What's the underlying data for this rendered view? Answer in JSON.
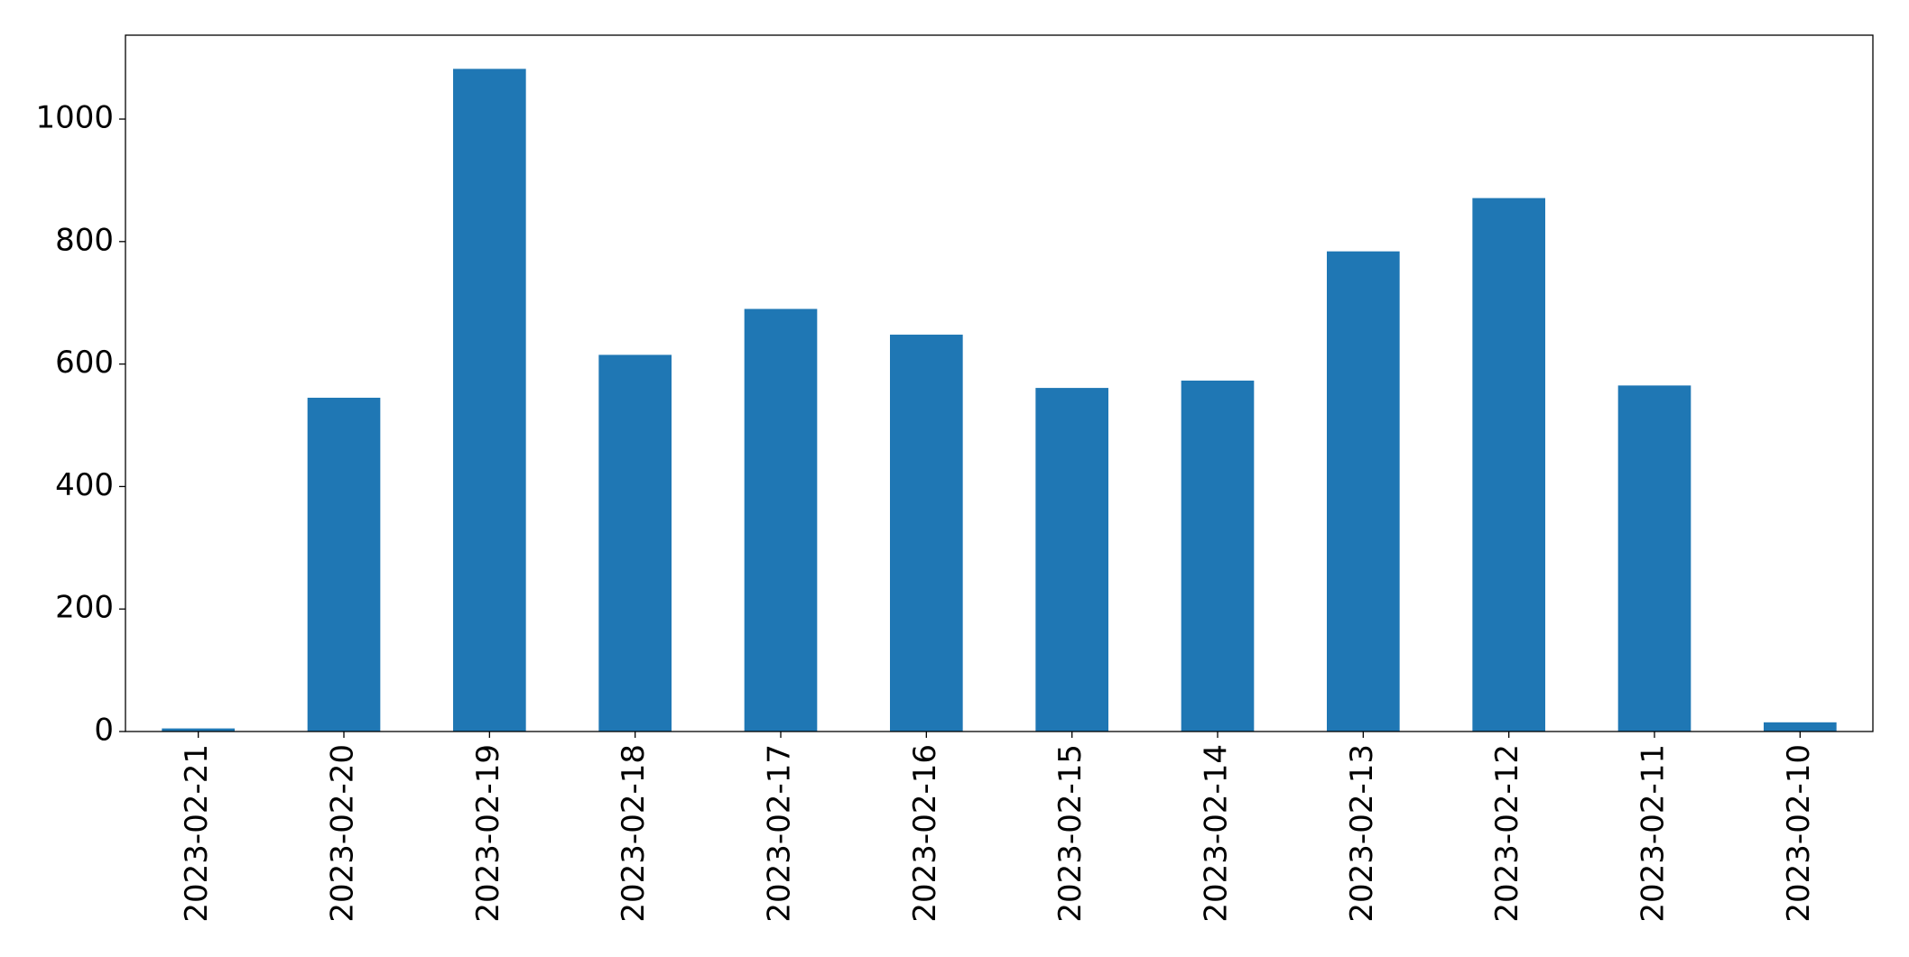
{
  "chart_data": {
    "type": "bar",
    "categories": [
      "2023-02-21",
      "2023-02-20",
      "2023-02-19",
      "2023-02-18",
      "2023-02-17",
      "2023-02-16",
      "2023-02-15",
      "2023-02-14",
      "2023-02-13",
      "2023-02-12",
      "2023-02-11",
      "2023-02-10"
    ],
    "values": [
      5,
      545,
      1082,
      615,
      690,
      648,
      561,
      573,
      784,
      871,
      565,
      15
    ],
    "color": "#1f77b4",
    "ylim": [
      0,
      1137
    ],
    "yticks": [
      0,
      200,
      400,
      600,
      800,
      1000
    ],
    "grid": false
  }
}
